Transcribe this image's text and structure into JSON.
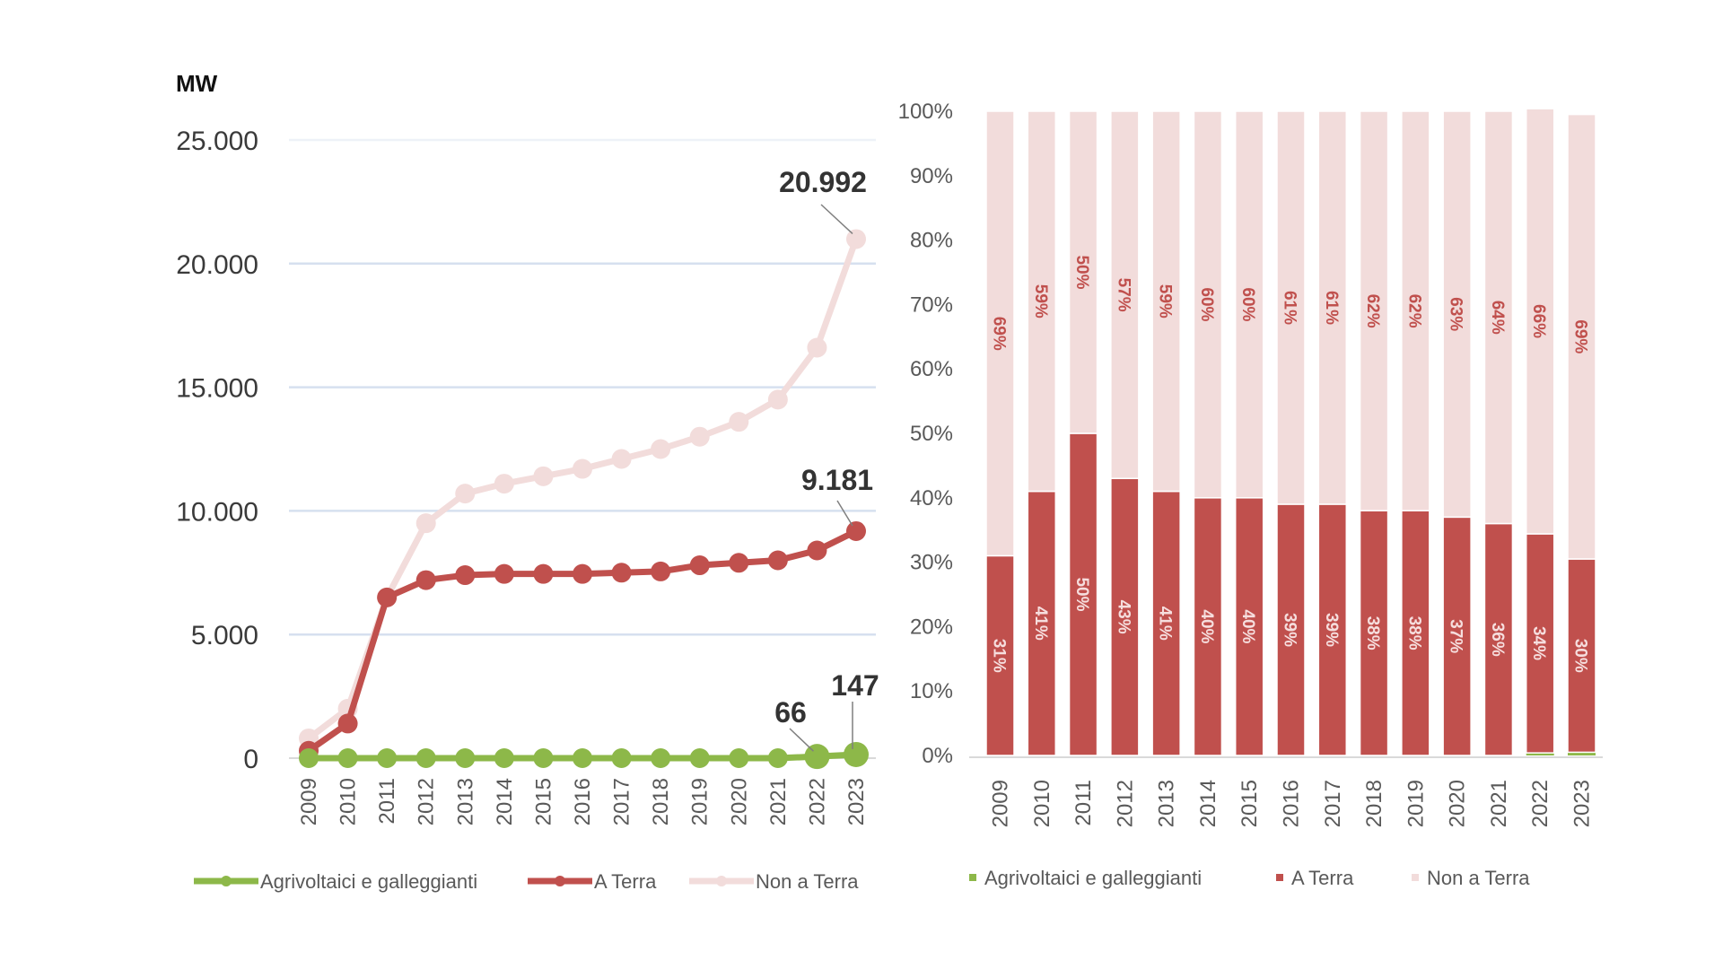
{
  "colors": {
    "agri": "#8db849",
    "terra": "#c0504d",
    "nonterra": "#f2dcdb",
    "grid": "#d6e0ef"
  },
  "chart_data": [
    {
      "type": "line",
      "unit_label": "MW",
      "x": [
        "2009",
        "2010",
        "2011",
        "2012",
        "2013",
        "2014",
        "2015",
        "2016",
        "2017",
        "2018",
        "2019",
        "2020",
        "2021",
        "2022",
        "2023"
      ],
      "ylim": [
        0,
        25000
      ],
      "yticks": [
        0,
        5000,
        10000,
        15000,
        20000,
        25000
      ],
      "ytick_labels": [
        "0",
        "5.000",
        "10.000",
        "15.000",
        "20.000",
        "25.000"
      ],
      "grid": true,
      "series": [
        {
          "name": "Agrivoltaici e galleggianti",
          "values": [
            0,
            0,
            0,
            0,
            0,
            0,
            0,
            0,
            0,
            0,
            0,
            0,
            0,
            66,
            147
          ]
        },
        {
          "name": "A Terra",
          "values": [
            300,
            1400,
            6500,
            7200,
            7400,
            7450,
            7450,
            7450,
            7500,
            7550,
            7800,
            7900,
            8000,
            8400,
            9181
          ]
        },
        {
          "name": "Non a Terra",
          "values": [
            800,
            2000,
            6500,
            9500,
            10700,
            11100,
            11400,
            11700,
            12100,
            12500,
            13000,
            13600,
            14500,
            16600,
            20992
          ]
        }
      ],
      "annotations": [
        {
          "text": "20.992",
          "series": "Non a Terra",
          "x": "2023"
        },
        {
          "text": "9.181",
          "series": "A Terra",
          "x": "2023"
        },
        {
          "text": "147",
          "series": "Agrivoltaici e galleggianti",
          "x": "2023"
        },
        {
          "text": "66",
          "series": "Agrivoltaici e galleggianti",
          "x": "2022"
        }
      ],
      "legend": "bottom"
    },
    {
      "type": "bar",
      "stacked": "percent",
      "categories": [
        "2009",
        "2010",
        "2011",
        "2012",
        "2013",
        "2014",
        "2015",
        "2016",
        "2017",
        "2018",
        "2019",
        "2020",
        "2021",
        "2022",
        "2023"
      ],
      "ylim": [
        0,
        100
      ],
      "yticks": [
        0,
        10,
        20,
        30,
        40,
        50,
        60,
        70,
        80,
        90,
        100
      ],
      "ytick_labels": [
        "0%",
        "10%",
        "20%",
        "30%",
        "40%",
        "50%",
        "60%",
        "70%",
        "80%",
        "90%",
        "100%"
      ],
      "series": [
        {
          "name": "Agrivoltaici e galleggianti",
          "values": [
            0,
            0,
            0,
            0,
            0,
            0,
            0,
            0,
            0,
            0,
            0,
            0,
            0,
            0.4,
            0.5
          ]
        },
        {
          "name": "A Terra",
          "values": [
            31,
            41,
            50,
            43,
            41,
            40,
            40,
            39,
            39,
            38,
            38,
            37,
            36,
            34,
            30
          ],
          "labels": [
            "31%",
            "41%",
            "50%",
            "43%",
            "41%",
            "40%",
            "40%",
            "39%",
            "39%",
            "38%",
            "38%",
            "37%",
            "36%",
            "34%",
            "30%"
          ]
        },
        {
          "name": "Non a Terra",
          "values": [
            69,
            59,
            50,
            57,
            59,
            60,
            60,
            61,
            61,
            62,
            62,
            63,
            64,
            66,
            69
          ],
          "labels": [
            "69%",
            "59%",
            "50%",
            "57%",
            "59%",
            "60%",
            "60%",
            "61%",
            "61%",
            "62%",
            "62%",
            "63%",
            "64%",
            "66%",
            "69%"
          ]
        }
      ],
      "legend": "bottom"
    }
  ]
}
